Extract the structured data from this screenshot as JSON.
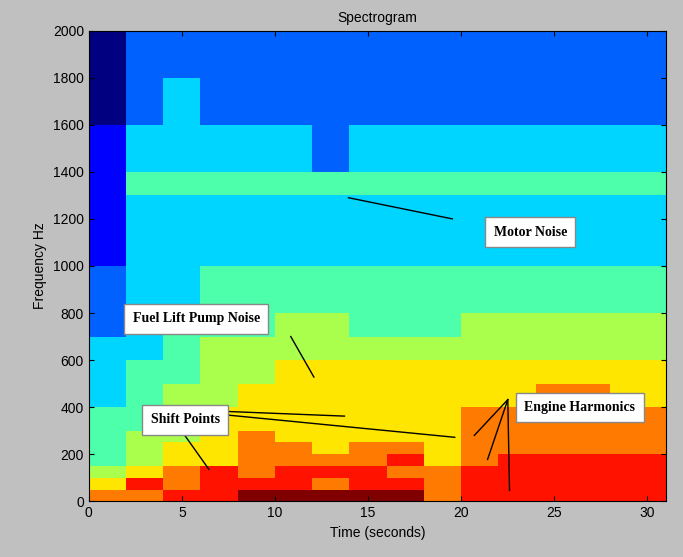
{
  "chart_data": {
    "type": "heatmap",
    "title": "Spectrogram",
    "x_label": "Time (seconds)",
    "y_label": "Frequency Hz",
    "xlim": [
      0,
      31
    ],
    "ylim": [
      0,
      2000
    ],
    "xticks": [
      0,
      5,
      10,
      15,
      20,
      25,
      30
    ],
    "yticks": [
      0,
      200,
      400,
      600,
      800,
      1000,
      1200,
      1400,
      1600,
      1800,
      2000
    ],
    "x": [
      0,
      2,
      4,
      6,
      8,
      10,
      12,
      14,
      16,
      18,
      20,
      22,
      24,
      26,
      28,
      30,
      31
    ],
    "y": [
      0,
      50,
      100,
      150,
      200,
      250,
      300,
      400,
      500,
      600,
      700,
      800,
      1000,
      1200,
      1300,
      1400,
      1600,
      1800,
      2000
    ],
    "cells": [
      [
        7,
        7,
        8,
        8,
        9,
        9,
        9,
        9,
        9,
        7,
        8,
        8,
        8,
        8,
        8,
        8
      ],
      [
        6,
        8,
        7,
        8,
        8,
        8,
        7,
        8,
        8,
        7,
        8,
        8,
        8,
        8,
        8,
        8
      ],
      [
        5,
        6,
        7,
        8,
        7,
        8,
        8,
        8,
        7,
        7,
        8,
        8,
        8,
        8,
        8,
        8
      ],
      [
        4,
        5,
        6,
        6,
        7,
        7,
        7,
        7,
        8,
        6,
        7,
        8,
        8,
        8,
        8,
        8
      ],
      [
        4,
        5,
        6,
        6,
        7,
        7,
        6,
        7,
        7,
        6,
        7,
        7,
        7,
        7,
        7,
        7
      ],
      [
        4,
        5,
        5,
        6,
        7,
        6,
        6,
        6,
        6,
        6,
        7,
        7,
        7,
        7,
        7,
        7
      ],
      [
        4,
        4,
        5,
        6,
        6,
        6,
        6,
        6,
        6,
        6,
        7,
        7,
        7,
        7,
        7,
        7
      ],
      [
        3,
        4,
        5,
        5,
        6,
        6,
        6,
        6,
        6,
        6,
        6,
        6,
        7,
        7,
        6,
        6
      ],
      [
        3,
        4,
        4,
        5,
        5,
        6,
        6,
        6,
        6,
        6,
        6,
        6,
        6,
        6,
        6,
        6
      ],
      [
        3,
        3,
        4,
        5,
        5,
        5,
        5,
        5,
        5,
        5,
        5,
        5,
        5,
        5,
        5,
        5
      ],
      [
        2,
        3,
        4,
        4,
        4,
        5,
        5,
        4,
        4,
        4,
        5,
        5,
        5,
        5,
        5,
        5
      ],
      [
        2,
        3,
        3,
        4,
        4,
        4,
        4,
        4,
        4,
        4,
        4,
        4,
        4,
        4,
        4,
        4
      ],
      [
        1,
        3,
        3,
        3,
        3,
        3,
        3,
        3,
        3,
        3,
        3,
        3,
        3,
        3,
        3,
        3
      ],
      [
        1,
        3,
        3,
        3,
        3,
        3,
        3,
        3,
        3,
        3,
        3,
        3,
        3,
        3,
        3,
        3
      ],
      [
        1,
        4,
        4,
        4,
        4,
        4,
        4,
        4,
        4,
        4,
        4,
        4,
        4,
        4,
        4,
        4
      ],
      [
        1,
        3,
        3,
        3,
        3,
        3,
        2,
        3,
        3,
        3,
        3,
        3,
        3,
        3,
        3,
        3
      ],
      [
        0,
        2,
        3,
        2,
        2,
        2,
        2,
        2,
        2,
        2,
        2,
        2,
        2,
        2,
        2,
        2
      ],
      [
        0,
        2,
        2,
        2,
        2,
        2,
        2,
        2,
        2,
        2,
        2,
        2,
        2,
        2,
        2,
        2
      ]
    ],
    "annotations": [
      "Motor Noise",
      "Fuel Lift Pump Noise",
      "Shift Points",
      "Engine Harmonics"
    ]
  }
}
